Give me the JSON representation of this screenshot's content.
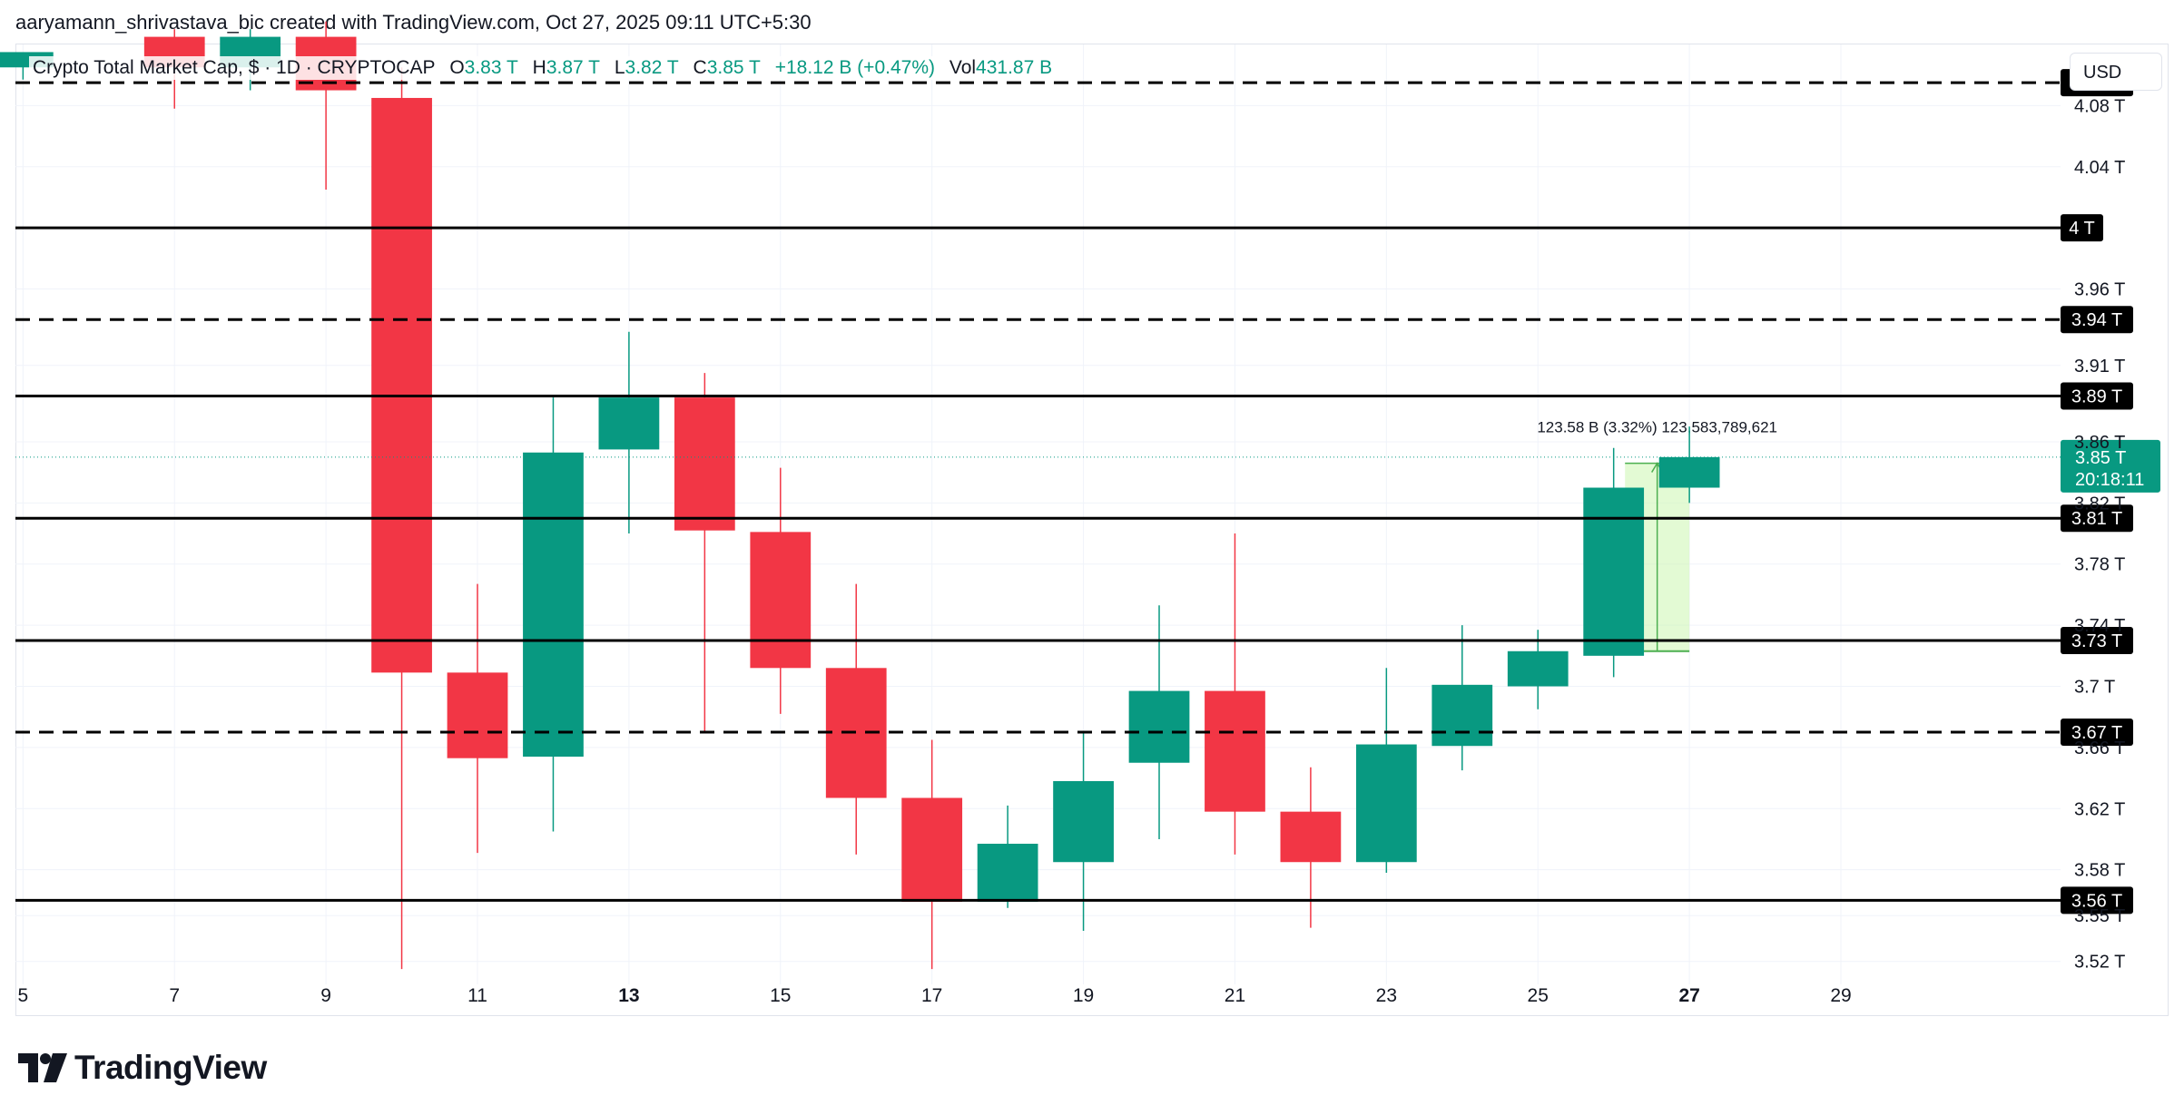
{
  "credit": "aaryamann_shrivastava_bic created with TradingView.com, Oct 27, 2025 09:11 UTC+5:30",
  "legend": {
    "symbol": "Crypto Total Market Cap, $ · 1D · CRYPTOCAP",
    "o_label": "O",
    "o_value": "3.83 T",
    "h_label": "H",
    "h_value": "3.87 T",
    "l_label": "L",
    "l_value": "3.82 T",
    "c_label": "C",
    "c_value": "3.85 T",
    "change": "+18.12 B (+0.47%)",
    "vol_label": "Vol",
    "vol_value": "431.87 B"
  },
  "currency_button": "USD",
  "brand": "TradingView",
  "colors": {
    "up": "#089981",
    "down": "#f23645",
    "level_line": "#000000",
    "grid": "#f0f3fa",
    "range_fill": "#ccf5b0",
    "range_border": "#4caf50"
  },
  "chart_data": {
    "type": "candlestick",
    "y_axis_labels": [
      "4.08 T",
      "4.04 T",
      "3.96 T",
      "3.91 T",
      "3.86 T",
      "3.82 T",
      "3.78 T",
      "3.74 T",
      "3.7 T",
      "3.66 T",
      "3.62 T",
      "3.58 T",
      "3.55 T",
      "3.52 T"
    ],
    "y_axis_values": [
      4.08,
      4.04,
      3.96,
      3.91,
      3.86,
      3.82,
      3.78,
      3.74,
      3.7,
      3.66,
      3.62,
      3.58,
      3.55,
      3.52
    ],
    "x_axis_labels": [
      {
        "day": 5,
        "label": "5",
        "bold": false
      },
      {
        "day": 7,
        "label": "7",
        "bold": false
      },
      {
        "day": 9,
        "label": "9",
        "bold": false
      },
      {
        "day": 11,
        "label": "11",
        "bold": false
      },
      {
        "day": 13,
        "label": "13",
        "bold": true
      },
      {
        "day": 15,
        "label": "15",
        "bold": false
      },
      {
        "day": 17,
        "label": "17",
        "bold": false
      },
      {
        "day": 19,
        "label": "19",
        "bold": false
      },
      {
        "day": 21,
        "label": "21",
        "bold": false
      },
      {
        "day": 23,
        "label": "23",
        "bold": false
      },
      {
        "day": 25,
        "label": "25",
        "bold": false
      },
      {
        "day": 27,
        "label": "27",
        "bold": true
      },
      {
        "day": 29,
        "label": "29",
        "bold": false
      }
    ],
    "y_range": [
      3.505,
      4.12
    ],
    "x_range": [
      4.9,
      31.9
    ],
    "candles": [
      {
        "day": 5,
        "open": 4.105,
        "high": 4.11,
        "low": 4.097,
        "close": 4.115
      },
      {
        "day": 7,
        "open": 4.125,
        "high": 4.13,
        "low": 4.078,
        "close": 4.105
      },
      {
        "day": 8,
        "open": 4.105,
        "high": 4.13,
        "low": 4.09,
        "close": 4.125
      },
      {
        "day": 9,
        "open": 4.125,
        "high": 4.135,
        "low": 4.025,
        "close": 4.09
      },
      {
        "day": 10,
        "open": 4.085,
        "high": 4.105,
        "low": 3.515,
        "close": 3.709
      },
      {
        "day": 11,
        "open": 3.709,
        "high": 3.767,
        "low": 3.591,
        "close": 3.653
      },
      {
        "day": 12,
        "open": 3.654,
        "high": 3.889,
        "low": 3.605,
        "close": 3.853
      },
      {
        "day": 13,
        "open": 3.855,
        "high": 3.932,
        "low": 3.8,
        "close": 3.889
      },
      {
        "day": 14,
        "open": 3.889,
        "high": 3.905,
        "low": 3.67,
        "close": 3.802
      },
      {
        "day": 15,
        "open": 3.801,
        "high": 3.843,
        "low": 3.682,
        "close": 3.712
      },
      {
        "day": 16,
        "open": 3.712,
        "high": 3.767,
        "low": 3.59,
        "close": 3.627
      },
      {
        "day": 17,
        "open": 3.627,
        "high": 3.665,
        "low": 3.515,
        "close": 3.559
      },
      {
        "day": 18,
        "open": 3.559,
        "high": 3.622,
        "low": 3.555,
        "close": 3.597
      },
      {
        "day": 19,
        "open": 3.585,
        "high": 3.67,
        "low": 3.54,
        "close": 3.638
      },
      {
        "day": 20,
        "open": 3.65,
        "high": 3.753,
        "low": 3.6,
        "close": 3.697
      },
      {
        "day": 21,
        "open": 3.697,
        "high": 3.8,
        "low": 3.59,
        "close": 3.618
      },
      {
        "day": 22,
        "open": 3.618,
        "high": 3.647,
        "low": 3.542,
        "close": 3.585
      },
      {
        "day": 23,
        "open": 3.585,
        "high": 3.712,
        "low": 3.578,
        "close": 3.662
      },
      {
        "day": 24,
        "open": 3.661,
        "high": 3.74,
        "low": 3.645,
        "close": 3.701
      },
      {
        "day": 25,
        "open": 3.7,
        "high": 3.737,
        "low": 3.685,
        "close": 3.723
      },
      {
        "day": 26,
        "open": 3.72,
        "high": 3.856,
        "low": 3.706,
        "close": 3.83
      },
      {
        "day": 27,
        "open": 3.83,
        "high": 3.87,
        "low": 3.82,
        "close": 3.85
      }
    ],
    "levels": [
      {
        "value": 4.095,
        "label": "4.09 T",
        "style": "dashed"
      },
      {
        "value": 4.0,
        "label": "4 T",
        "style": "solid"
      },
      {
        "value": 3.94,
        "label": "3.94 T",
        "style": "dashed"
      },
      {
        "value": 3.89,
        "label": "3.89 T",
        "style": "solid"
      },
      {
        "value": 3.81,
        "label": "3.81 T",
        "style": "solid"
      },
      {
        "value": 3.73,
        "label": "3.73 T",
        "style": "solid"
      },
      {
        "value": 3.67,
        "label": "3.67 T",
        "style": "dashed"
      },
      {
        "value": 3.56,
        "label": "3.56 T",
        "style": "solid"
      }
    ],
    "last_price": {
      "value": 3.85,
      "label": "3.85 T",
      "countdown": "20:18:11"
    },
    "price_range": {
      "day_start": 26.2,
      "day_end": 27.0,
      "low": 3.723,
      "high": 3.846,
      "label": "123.58 B (3.32%) 123,583,789,621"
    }
  }
}
